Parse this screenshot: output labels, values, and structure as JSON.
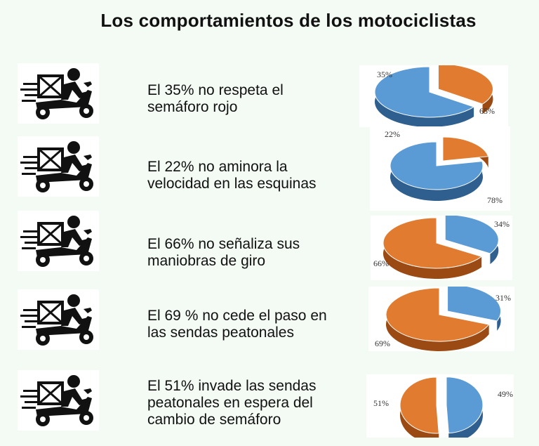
{
  "title": "Los comportamientos de los motociclistas",
  "colors": {
    "blue": "#5b9bd5",
    "blue_dark": "#2e5f8f",
    "orange": "#e07b2f",
    "orange_dark": "#9a4a12",
    "icon": "#111111"
  },
  "icon_name": "delivery-scooter-icon",
  "rows": [
    {
      "line1": "El 35%  no respeta el",
      "line2": "semáforo rojo",
      "line3": ""
    },
    {
      "line1": "El 22% no aminora la",
      "line2": "velocidad en las esquinas",
      "line3": ""
    },
    {
      "line1": "El 66% no señaliza sus",
      "line2": "maniobras de giro",
      "line3": ""
    },
    {
      "line1": "El 69 % no cede el paso en",
      "line2": "las sendas peatonales",
      "line3": ""
    },
    {
      "line1": "El 51% invade las sendas",
      "line2": "peatonales en espera del",
      "line3": "cambio de semáforo"
    }
  ],
  "chart_data": [
    {
      "type": "pie",
      "slices": [
        {
          "label": "35%",
          "value": 35,
          "color": "#e07b2f",
          "exploded": true
        },
        {
          "label": "65%",
          "value": 65,
          "color": "#5b9bd5",
          "exploded": false
        }
      ]
    },
    {
      "type": "pie",
      "slices": [
        {
          "label": "22%",
          "value": 22,
          "color": "#e07b2f",
          "exploded": true
        },
        {
          "label": "78%",
          "value": 78,
          "color": "#5b9bd5",
          "exploded": false
        }
      ]
    },
    {
      "type": "pie",
      "slices": [
        {
          "label": "34%",
          "value": 34,
          "color": "#5b9bd5",
          "exploded": true
        },
        {
          "label": "66%",
          "value": 66,
          "color": "#e07b2f",
          "exploded": false
        }
      ]
    },
    {
      "type": "pie",
      "slices": [
        {
          "label": "31%",
          "value": 31,
          "color": "#5b9bd5",
          "exploded": true
        },
        {
          "label": "69%",
          "value": 69,
          "color": "#e07b2f",
          "exploded": false
        }
      ]
    },
    {
      "type": "pie",
      "slices": [
        {
          "label": "49%",
          "value": 49,
          "color": "#5b9bd5",
          "exploded": true
        },
        {
          "label": "51%",
          "value": 51,
          "color": "#e07b2f",
          "exploded": false
        }
      ]
    }
  ]
}
